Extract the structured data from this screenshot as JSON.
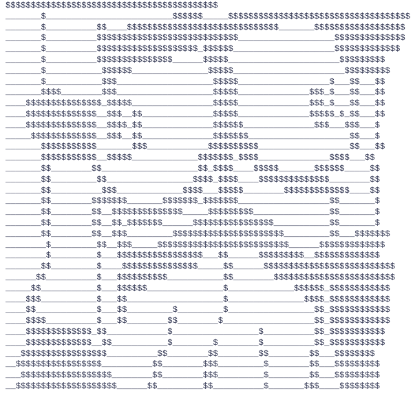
{
  "art": {
    "text_color": "#2e3350",
    "lines": [
      "$$$$$$$$$$$$$$$$$$$$$$$$$$$$$$$$$$$$$$$$$$",
      "_______$_________________________$$$$$$_____$$$$$$$$$$$$$$$$$$$$$$$$$$$$$$$$$$$$",
      "_______$__________$$____$$$$$$$$$$$$$$$$$$$$$$$$$$$$$$_______$$$$$$$$$$$$$$$$$$",
      "_______$__________$$$$$$$$$$$$$$$$$$$$$$$$$$$$___________________$$$$$$$$$$$$$$",
      "_______$__________$$$$$$$$$$$$$$$$$$$$_$$$$$$____________________$$$$$$$$$$$$$",
      "_______$__________$$$$$$$$$$$$$$$______$$$$$______________________$$$$$$$$$",
      "_______$___________$$$$$$_______________$$$$$______________________$$$$$$$$$",
      "_______$___________$$$___________________$$$$$__________________$___$$___$$",
      "_______$$$$________$$$___________________$$$$$______________$$$_$___$$___$$",
      "____$$$$$$$$$$$$$$$_$$$$$________________$$$$$______________$$$_$___$$___$$",
      "____$$$$$$$$$$$$$$__$$$__$$______________$$$$$______________$$$$$_$_$$___$$",
      "____$$$$$$$$$$$$$$__$$$$_$$______________$$$$$$______________$$$___$$$___$",
      "_____$$$$$$$$$$$$$__$$$__$$______________$$$$$$$____________________$$___$",
      "_______$$$$$$$$$$$_______$$$____________$$$$$$$$$$__________________$$___$$",
      "_______$$$$$$$$$$$__$$$$$_____________$$$$$$$_$$$$______________$$$$___$$",
      "_______$$________$$___________________$$_$$$$____$$$$$_______$$$$$$_____$$",
      "_______$$_________$$_________________$$$$_$$$$____$$$$$$$$$$$$$$________$$",
      "_______$$__________$$$_____________$$$$___$$$$$________$$$$$$$$$$$$$____$$",
      "_______$$________$$$$$$$_______$$$$$$$_$$$$$$$__________________$$_______$",
      "_______$$________$$__$$$$$$$$$$$$$$_____$$$$$$$$$_______________$$_______$",
      "_______$$________$$__$$_$$$$$$$______$$$$$$$$$$$$$$$$___________$$_______$",
      "_______$$________$$__$$$_________$$$$$$$$$$$$$$$$$$$$$$_________$$___$$$$$$$",
      "________$_________$$__$$$_____$$$$$$$$$$$$$$$$$$$$$$$$$$______$$$$$$$$$$$$$",
      "________$_________$___$$$$$$$$$$$$$$$$$___$$______$$$$$$$$$__$$$$$$$$$$$$$",
      "_______$$_________$____$$$$$$$$$$$$$$$_____$$______$$$$$$$$$$$$$$$$$$$$$$$$$$",
      "______$$__________$___$$$$$$$$$$___________$$________$$$$$$$$$$$$$$$$$$$$$$$$",
      "_____$$___________$___$$$$$$_______________$_____________$$$$$$_$$$$$$$$$$$$",
      "____$$$___________$___$$___________________$_______________$$$$_$$$$$$$$$$$$",
      "____$$____________$___$$_________$_________$_________________$$_$$$$$$$$$$$$",
      "____$$$$__________$___$$________$$________$__________________$$_$$$$$$$$$$$$",
      "____$$$$$$$$$$$$$_$$____________$_________________$__________$$_$$$$$$$$$$$",
      "____$$$$$$$$$$$$$__$$___________$________$________$__________$$_$$$$$$$$$$$",
      "___$$$$$$$$$$$$$$$$$__________$$________$$________$$________$$___$$$$$$$$",
      "__$$$$$$$$$$$$$$$$$__________$$________$$$_________$________$$___$$$$$$$$$",
      "___$$$$$$$$$$$$$$$$$$________$$________$$$_________$________$$___$$$$$$$$$",
      "__$$$$$$$$$$$$$$$$$$$$______$$_________$$__________$_______$$$____$$$$$$$$"
    ]
  }
}
